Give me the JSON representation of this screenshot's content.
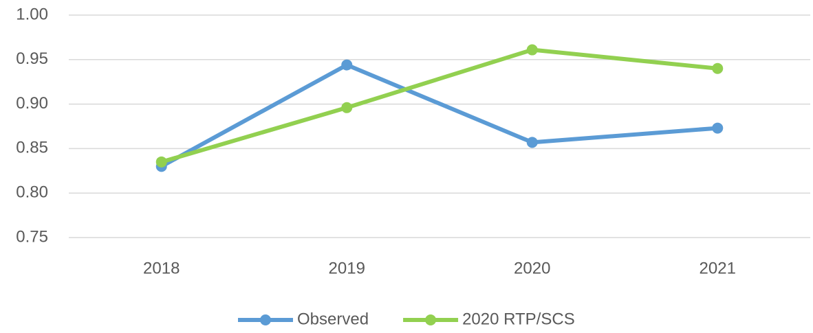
{
  "chart_data": {
    "type": "line",
    "categories": [
      "2018",
      "2019",
      "2020",
      "2021"
    ],
    "series": [
      {
        "name": "Observed",
        "color": "#5b9bd5",
        "values": [
          0.83,
          0.944,
          0.857,
          0.873
        ]
      },
      {
        "name": "2020 RTP/SCS",
        "color": "#92d050",
        "values": [
          0.835,
          0.896,
          0.961,
          0.94
        ]
      }
    ],
    "ylim": [
      0.75,
      1.0
    ],
    "yticks": [
      0.75,
      {
        "value": 0.8,
        "label": "0.80"
      },
      0.85,
      {
        "value": 0.9,
        "label": "0.90"
      },
      0.95,
      {
        "value": 1.0,
        "label": "1.00"
      }
    ],
    "grid": true,
    "legend": "bottom"
  }
}
